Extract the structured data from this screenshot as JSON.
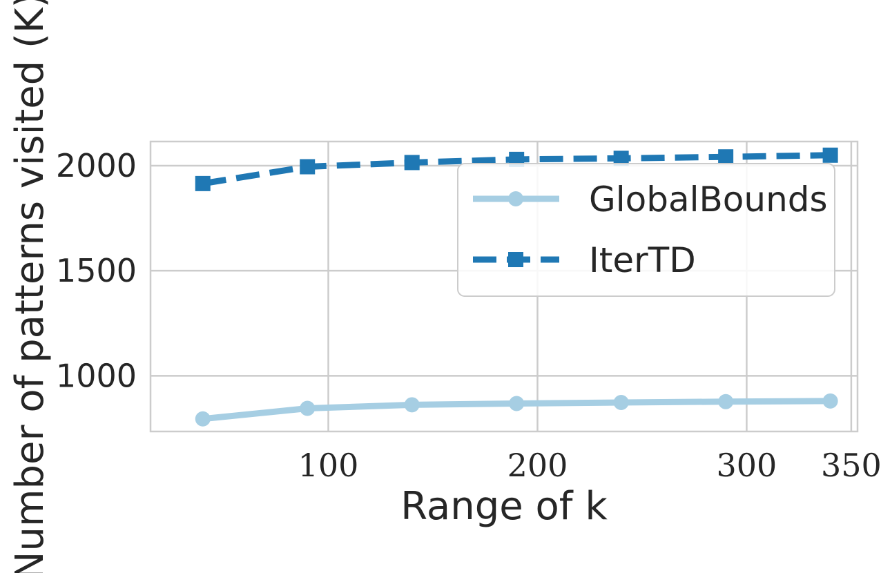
{
  "chart_data": {
    "type": "line",
    "xlabel": "Range of k",
    "ylabel": "Number of patterns visited (K)",
    "x": [
      40,
      90,
      140,
      190,
      240,
      290,
      340
    ],
    "xticks": [
      100,
      200,
      300,
      350
    ],
    "yticks": [
      1000,
      1500,
      2000
    ],
    "xlim": [
      15,
      353
    ],
    "ylim": [
      735,
      2115
    ],
    "grid": true,
    "legend_position": "upper right",
    "series": [
      {
        "name": "GlobalBounds",
        "values": [
          795,
          845,
          862,
          868,
          873,
          877,
          880
        ],
        "color": "#a6cee3",
        "line_style": "solid",
        "marker": "circle"
      },
      {
        "name": "IterTD",
        "values": [
          1915,
          1995,
          2015,
          2030,
          2035,
          2042,
          2050
        ],
        "color": "#1f78b4",
        "line_style": "dashed",
        "marker": "square"
      }
    ]
  }
}
